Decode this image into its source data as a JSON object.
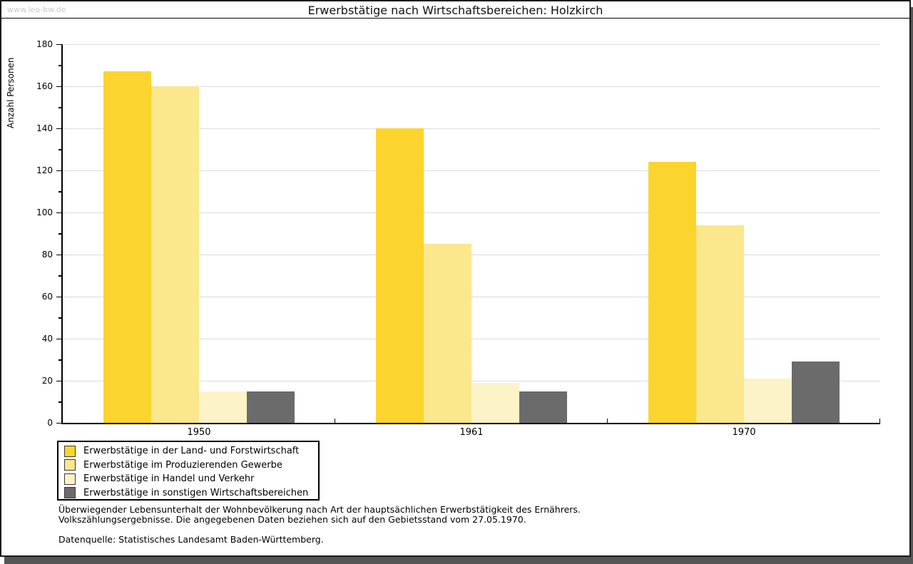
{
  "page": {
    "watermark": "www.leo-bw.de",
    "title": "Erwerbstätige nach Wirtschaftsbereichen: Holzkirch"
  },
  "chart_data": {
    "type": "bar",
    "title": "Erwerbstätige nach Wirtschaftsbereichen: Holzkirch",
    "categories": [
      "1950",
      "1961",
      "1970"
    ],
    "series": [
      {
        "name": "Erwerbstätige in der Land- und Forstwirtschaft",
        "color": "#FBD42E",
        "values": [
          167,
          140,
          124
        ]
      },
      {
        "name": "Erwerbstätige im Produzierenden Gewerbe",
        "color": "#FBE78C",
        "values": [
          160,
          85,
          94
        ]
      },
      {
        "name": "Erwerbstätige in Handel und Verkehr",
        "color": "#FCF3C8",
        "values": [
          15,
          19,
          21
        ]
      },
      {
        "name": "Erwerbstätige in sonstigen Wirtschaftsbereichen",
        "color": "#6B6B6B",
        "values": [
          15,
          15,
          29
        ]
      }
    ],
    "xlabel": "",
    "ylabel": "Anzahl Personen",
    "ylim": [
      0,
      180
    ],
    "ytick_step": 20,
    "ytick_minor_step": 10,
    "grid": true,
    "legend_position": "bottom-left"
  },
  "footnotes": {
    "line1": "Überwiegender Lebensunterhalt der Wohnbevölkerung nach Art der hauptsächlichen Erwerbstätigkeit des Ernährers.",
    "line2": "Volkszählungsergebnisse. Die angegebenen Daten beziehen sich auf den Gebietsstand vom 27.05.1970.",
    "source": "Datenquelle: Statistisches Landesamt Baden-Württemberg."
  },
  "colors": {
    "grid": "#DDDDDD",
    "axis": "#000000",
    "watermark": "#C9C9C9",
    "shadow": "#555555"
  }
}
